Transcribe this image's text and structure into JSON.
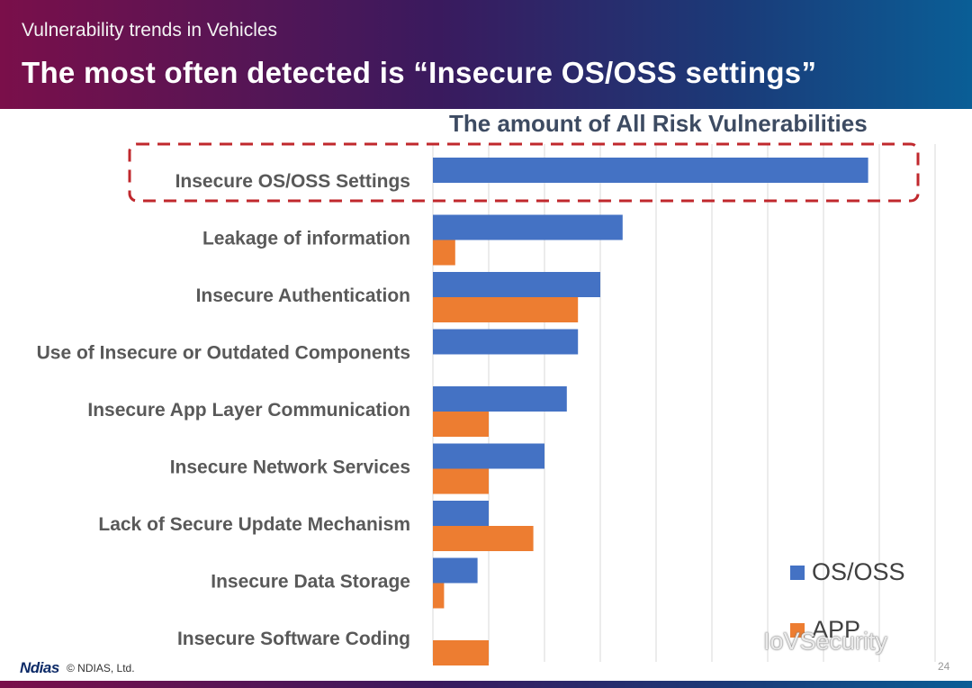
{
  "header": {
    "subtitle": "Vulnerability trends in Vehicles",
    "title": "The most often detected is “Insecure OS/OSS settings”"
  },
  "chart_data": {
    "type": "bar",
    "orientation": "horizontal",
    "title": "The amount of All Risk Vulnerabilities",
    "categories": [
      "Insecure OS/OSS Settings",
      "Leakage of information",
      "Insecure Authentication",
      "Use of Insecure or Outdated Components",
      "Insecure App Layer Communication",
      "Insecure Network Services",
      "Lack of Secure Update Mechanism",
      "Insecure Data Storage",
      "Insecure Software Coding"
    ],
    "series": [
      {
        "name": "OS/OSS",
        "color": "#4472c4",
        "values": [
          39,
          17,
          15,
          13,
          12,
          10,
          5,
          4,
          0
        ]
      },
      {
        "name": "APP",
        "color": "#ed7d31",
        "values": [
          0,
          2,
          13,
          0,
          5,
          5,
          9,
          1,
          5
        ]
      }
    ],
    "xlim": [
      0,
      45
    ],
    "gridlines": true,
    "tick_labels_shown": false,
    "legend": "bottom-right",
    "highlight": {
      "category": "Insecure OS/OSS Settings",
      "style": "dashed-box",
      "color": "#c0282d"
    }
  },
  "footer": {
    "logo": "Ndias",
    "copyright": "© NDIAS, Ltd.",
    "page": "24"
  },
  "watermark": "IoVSecurity"
}
